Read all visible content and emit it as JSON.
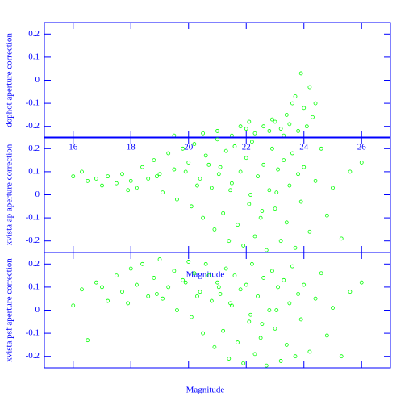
{
  "chart_data": [
    {
      "type": "scatter",
      "y_label": "dophot aperture correction",
      "xlim": [
        15,
        27
      ],
      "ylim": [
        -0.25,
        0.25
      ],
      "xticks": [
        16,
        18,
        20,
        22,
        24,
        26
      ],
      "yticks": [
        -0.2,
        -0.1,
        0,
        0.1,
        0.2
      ],
      "color": "#00ff00",
      "x": [
        20.5,
        21,
        21.5,
        22,
        22.3,
        22.6,
        22.8,
        23,
        23.2,
        23.4,
        23.5,
        23.6,
        23.7,
        23.9,
        24,
        24.1,
        24.2,
        24.3,
        23.8,
        22.1,
        21.8,
        23.3,
        24.4,
        22.9,
        19.5
      ],
      "y": [
        -0.23,
        -0.22,
        -0.24,
        -0.21,
        -0.23,
        -0.2,
        -0.22,
        -0.18,
        -0.21,
        -0.15,
        -0.19,
        -0.1,
        -0.07,
        0.03,
        -0.12,
        -0.2,
        -0.03,
        -0.16,
        -0.22,
        -0.18,
        -0.2,
        -0.24,
        -0.1,
        -0.17,
        -0.24
      ]
    },
    {
      "type": "scatter",
      "y_label": "xvista ap aperture correction",
      "x_label": "Magnitude",
      "xlim": [
        15,
        27
      ],
      "ylim": [
        -0.25,
        0.25
      ],
      "yticks": [
        -0.2,
        -0.1,
        0,
        0.1,
        0.2
      ],
      "color": "#00ff00",
      "x": [
        16,
        16.3,
        16.5,
        16.8,
        17,
        17.2,
        17.5,
        17.7,
        18,
        18.2,
        18.4,
        18.6,
        18.8,
        19,
        19.1,
        19.3,
        19.5,
        19.6,
        19.8,
        20,
        20.1,
        20.2,
        20.4,
        20.5,
        20.6,
        20.8,
        20.9,
        21,
        21.1,
        21.2,
        21.3,
        21.4,
        21.5,
        21.6,
        21.7,
        21.8,
        21.9,
        22,
        22.1,
        22.2,
        22.3,
        22.4,
        22.5,
        22.6,
        22.7,
        22.8,
        22.9,
        23,
        23.1,
        23.2,
        23.3,
        23.4,
        23.5,
        23.6,
        23.7,
        23.8,
        23.9,
        24,
        24.2,
        24.4,
        24.6,
        24.8,
        25,
        25.3,
        25.6,
        26,
        20.3,
        21.05,
        21.45,
        20.7,
        22.15,
        22.55,
        23.05,
        19.9,
        18.9,
        17.9
      ],
      "y": [
        0.08,
        0.1,
        0.06,
        0.07,
        0.04,
        0.08,
        0.05,
        0.09,
        0.06,
        0.03,
        0.12,
        0.07,
        0.15,
        0.09,
        0.01,
        0.18,
        0.11,
        -0.02,
        0.2,
        0.14,
        -0.05,
        0.22,
        0.07,
        -0.1,
        0.17,
        0.03,
        -0.15,
        0.24,
        0.12,
        -0.08,
        0.19,
        -0.2,
        0.05,
        0.21,
        -0.13,
        0.1,
        -0.22,
        0.16,
        -0.04,
        0.23,
        -0.18,
        0.08,
        -0.1,
        0.13,
        -0.24,
        0.02,
        0.2,
        -0.06,
        0.11,
        -0.2,
        0.15,
        -0.12,
        0.04,
        0.18,
        -0.23,
        0.09,
        -0.03,
        0.12,
        -0.16,
        0.06,
        0.2,
        -0.09,
        0.03,
        -0.19,
        0.1,
        0.14,
        0.04,
        0.09,
        0.02,
        0.13,
        0.0,
        -0.07,
        0.01,
        0.1,
        0.08,
        0.02
      ]
    },
    {
      "type": "scatter",
      "y_label": "xvista psf aperture correction",
      "x_label": "Magnitude",
      "xlim": [
        15,
        27
      ],
      "ylim": [
        -0.25,
        0.25
      ],
      "yticks": [
        -0.2,
        -0.1,
        0,
        0.1,
        0.2
      ],
      "color": "#00ff00",
      "x": [
        16,
        16.3,
        16.5,
        16.8,
        17,
        17.2,
        17.5,
        17.7,
        18,
        18.2,
        18.4,
        18.6,
        18.8,
        19,
        19.1,
        19.3,
        19.5,
        19.6,
        19.8,
        20,
        20.1,
        20.2,
        20.4,
        20.5,
        20.6,
        20.8,
        20.9,
        21,
        21.1,
        21.2,
        21.3,
        21.4,
        21.5,
        21.6,
        21.7,
        21.8,
        21.9,
        22,
        22.1,
        22.2,
        22.3,
        22.4,
        22.5,
        22.6,
        22.7,
        22.8,
        22.9,
        23,
        23.1,
        23.2,
        23.3,
        23.4,
        23.5,
        23.6,
        23.7,
        23.8,
        23.9,
        24,
        24.2,
        24.4,
        24.6,
        24.8,
        25,
        25.3,
        25.6,
        26,
        20.3,
        21.05,
        21.45,
        20.7,
        22.15,
        22.55,
        23.05,
        19.9,
        18.9,
        17.9
      ],
      "y": [
        0.02,
        0.09,
        -0.13,
        0.12,
        0.1,
        0.04,
        0.15,
        0.08,
        0.18,
        0.11,
        0.2,
        0.06,
        0.14,
        0.22,
        0.05,
        0.1,
        0.17,
        0.0,
        0.13,
        0.21,
        -0.03,
        0.16,
        0.08,
        -0.1,
        0.2,
        0.04,
        -0.16,
        0.12,
        0.07,
        -0.09,
        0.18,
        -0.21,
        0.02,
        0.15,
        -0.14,
        0.09,
        -0.23,
        0.11,
        -0.05,
        0.2,
        -0.19,
        0.06,
        -0.12,
        0.14,
        -0.24,
        0.0,
        0.17,
        -0.08,
        0.1,
        -0.22,
        0.13,
        -0.15,
        0.03,
        0.19,
        -0.2,
        0.07,
        -0.04,
        0.11,
        -0.18,
        0.05,
        0.16,
        -0.11,
        0.01,
        -0.2,
        0.08,
        0.12,
        0.06,
        0.1,
        0.03,
        0.15,
        -0.02,
        -0.06,
        0.0,
        0.12,
        0.07,
        0.03
      ]
    }
  ]
}
